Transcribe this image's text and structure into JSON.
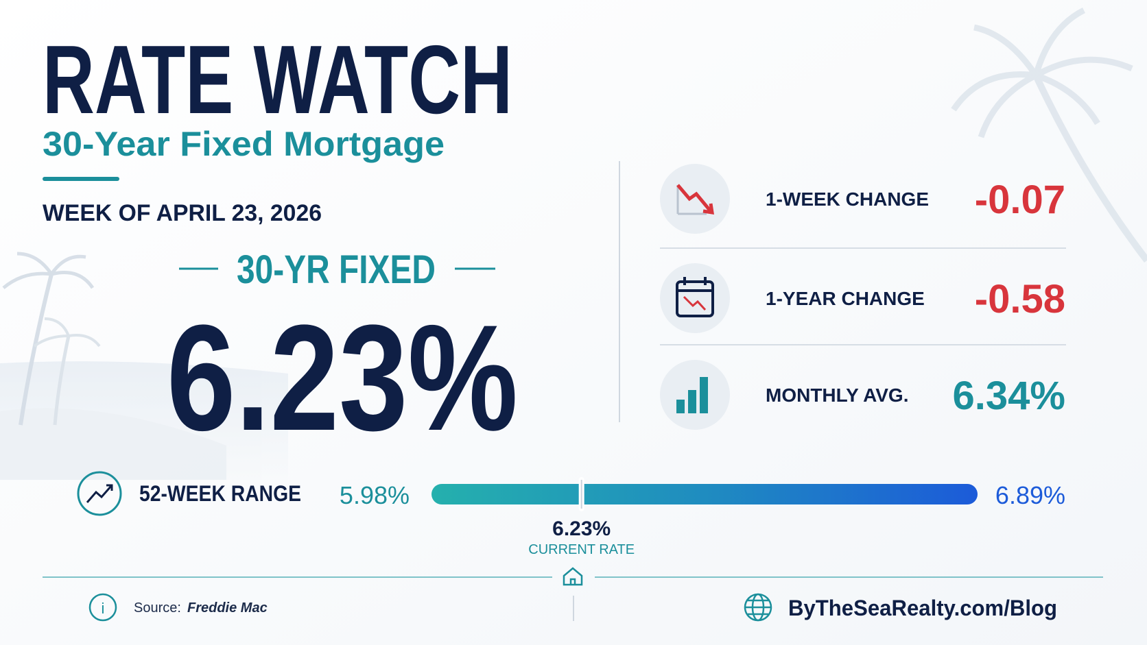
{
  "header": {
    "title": "RATE WATCH",
    "subtitle": "30-Year Fixed Mortgage",
    "week": "WEEK OF APRIL 23, 2026"
  },
  "rate": {
    "label": "30-YR FIXED",
    "value": "6.23%"
  },
  "stats": [
    {
      "label": "1-WEEK CHANGE",
      "value": "-0.07",
      "color": "#d8353c"
    },
    {
      "label": "1-YEAR CHANGE",
      "value": "-0.58",
      "color": "#d8353c"
    },
    {
      "label": "MONTHLY AVG.",
      "value": "6.34%",
      "color": "#1b8f9b"
    }
  ],
  "range": {
    "label": "52-WEEK RANGE",
    "low": {
      "value": 5.98,
      "label": "5.98%"
    },
    "high": {
      "value": 6.89,
      "label": "6.89%"
    },
    "current": {
      "value": 6.23,
      "label": "6.23%"
    },
    "current_label": "CURRENT RATE"
  },
  "footer": {
    "source_label": "Source:",
    "source": "Freddie Mac",
    "website": "ByTheSeaRealty.com/Blog"
  }
}
